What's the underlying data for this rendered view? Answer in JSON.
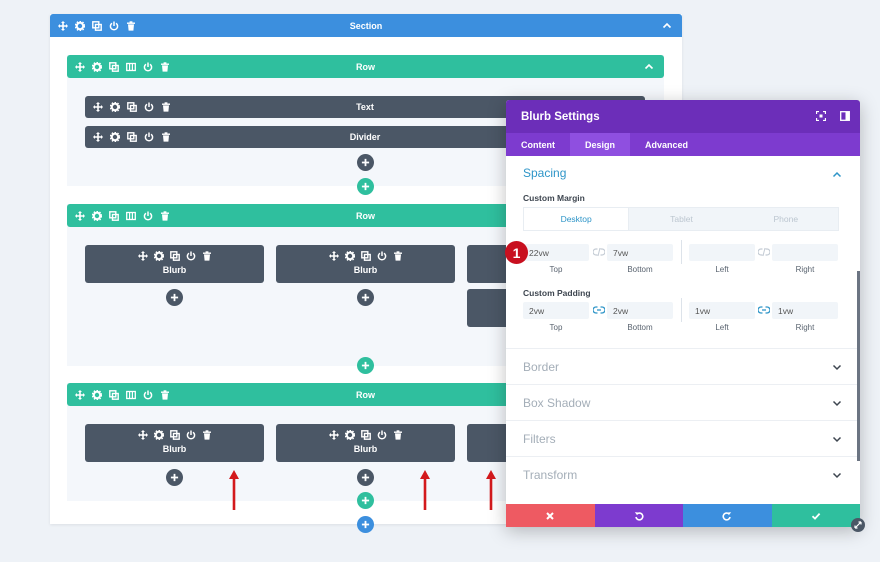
{
  "builder": {
    "section_title": "Section",
    "rows": [
      {
        "title": "Row",
        "modules": [
          "Text",
          "Divider"
        ]
      },
      {
        "title": "Row",
        "blurbs": [
          "Blurb",
          "Blurb"
        ]
      },
      {
        "title": "Row",
        "blurbs": [
          "Blurb",
          "Blurb"
        ]
      }
    ]
  },
  "modal": {
    "title": "Blurb Settings",
    "tabs": [
      "Content",
      "Design",
      "Advanced"
    ],
    "active_tab": "Design",
    "spacing": {
      "title": "Spacing",
      "margin_label": "Custom Margin",
      "device_tabs": [
        "Desktop",
        "Tablet",
        "Phone"
      ],
      "margin": {
        "top": "22vw",
        "bottom": "7vw",
        "left": "",
        "right": ""
      },
      "padding_label": "Custom Padding",
      "padding": {
        "top": "2vw",
        "bottom": "2vw",
        "left": "1vw",
        "right": "1vw"
      },
      "labels": {
        "top": "Top",
        "bottom": "Bottom",
        "left": "Left",
        "right": "Right"
      }
    },
    "collapsed_groups": [
      "Border",
      "Box Shadow",
      "Filters",
      "Transform"
    ]
  },
  "annotation": {
    "step": "1"
  },
  "colors": {
    "section": "#3c8fde",
    "row": "#2fbf9e",
    "module": "#4b5766",
    "modal_header": "#6c2eb9",
    "modal_tabs": "#7d3bcf",
    "cancel": "#ee5a62",
    "undo": "#7d3bcf",
    "redo": "#3c8fde",
    "save": "#2fbf9e",
    "arrow": "#d3191c"
  }
}
